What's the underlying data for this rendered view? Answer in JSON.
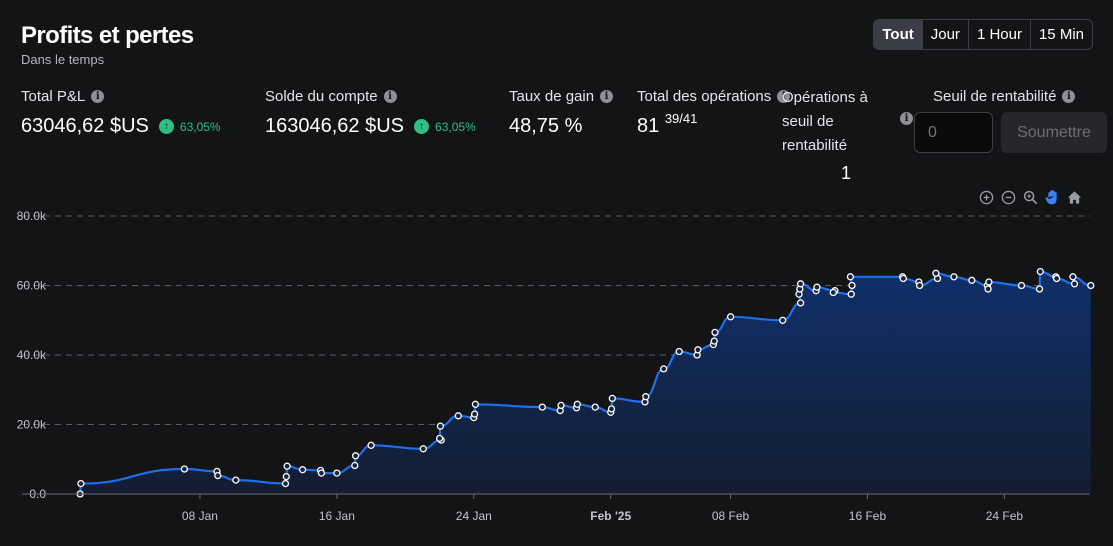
{
  "header": {
    "title": "Profits et pertes",
    "subtitle": "Dans le temps"
  },
  "range_buttons": [
    {
      "label": "Tout",
      "active": true
    },
    {
      "label": "Jour",
      "active": false
    },
    {
      "label": "1 Hour",
      "active": false
    },
    {
      "label": "15 Min",
      "active": false
    }
  ],
  "stats": {
    "total_pnl": {
      "label": "Total P&L",
      "value": "63046,62 $US",
      "badge": "63,05%"
    },
    "balance": {
      "label": "Solde du compte",
      "value": "163046,62 $US",
      "badge": "63,05%"
    },
    "win_rate": {
      "label": "Taux de gain",
      "value": "48,75 %"
    },
    "total_ops": {
      "label": "Total des opérations",
      "value": "81",
      "detail": "39/41"
    },
    "breakeven_ops": {
      "label": "Opérations à seuil de rentabilité",
      "value": "1"
    },
    "threshold": {
      "label": "Seuil de rentabilité",
      "placeholder": "0",
      "submit_label": "Soumettre"
    }
  },
  "toolbar": {
    "icons": [
      "zoom-in-icon",
      "zoom-out-icon",
      "magnifier-icon",
      "pan-hand-icon",
      "home-icon"
    ],
    "active_color": "#3b82f6",
    "icon_color": "#9a9da3"
  },
  "colors": {
    "line": "#1f6feb",
    "area_top": "#10306a",
    "area_bottom": "#131d32",
    "badge_green": "#2fbf84",
    "grid": "#5a5c61"
  },
  "chart_data": {
    "type": "area",
    "x_unit": "date",
    "year": 2025,
    "xlim": [
      "2024-12-31",
      "2025-03-01"
    ],
    "ylim": [
      0,
      80000
    ],
    "grid": true,
    "y_ticks": [
      {
        "value": 0,
        "label": "0.0"
      },
      {
        "value": 20000,
        "label": "20.0k"
      },
      {
        "value": 40000,
        "label": "40.0k"
      },
      {
        "value": 60000,
        "label": "60.0k"
      },
      {
        "value": 80000,
        "label": "80.0k"
      }
    ],
    "x_ticks": [
      {
        "date": "2025-01-08",
        "label": "08 Jan",
        "bold": false
      },
      {
        "date": "2025-01-16",
        "label": "16 Jan",
        "bold": false
      },
      {
        "date": "2025-01-24",
        "label": "24 Jan",
        "bold": false
      },
      {
        "date": "2025-02-01",
        "label": "Feb '25",
        "bold": true
      },
      {
        "date": "2025-02-08",
        "label": "08 Feb",
        "bold": false
      },
      {
        "date": "2025-02-16",
        "label": "16 Feb",
        "bold": false
      },
      {
        "date": "2025-02-24",
        "label": "24 Feb",
        "bold": false
      }
    ],
    "series": [
      {
        "points": [
          [
            "2025-01-01",
            0
          ],
          [
            "2025-01-01",
            3000
          ],
          [
            "2025-01-07",
            7200
          ],
          [
            "2025-01-09",
            6500
          ],
          [
            "2025-01-09",
            5300
          ],
          [
            "2025-01-10",
            4000
          ],
          [
            "2025-01-13",
            3000
          ],
          [
            "2025-01-13",
            5000
          ],
          [
            "2025-01-13",
            8000
          ],
          [
            "2025-01-14",
            7000
          ],
          [
            "2025-01-15",
            6800
          ],
          [
            "2025-01-15",
            6000
          ],
          [
            "2025-01-16",
            6000
          ],
          [
            "2025-01-17",
            8200
          ],
          [
            "2025-01-17",
            11000
          ],
          [
            "2025-01-18",
            14000
          ],
          [
            "2025-01-21",
            13000
          ],
          [
            "2025-01-22",
            15500
          ],
          [
            "2025-01-22",
            16000
          ],
          [
            "2025-01-22",
            19500
          ],
          [
            "2025-01-23",
            22500
          ],
          [
            "2025-01-24",
            22000
          ],
          [
            "2025-01-24",
            23000
          ],
          [
            "2025-01-24",
            25800
          ],
          [
            "2025-01-28",
            25000
          ],
          [
            "2025-01-29",
            24000
          ],
          [
            "2025-01-29",
            25500
          ],
          [
            "2025-01-30",
            24800
          ],
          [
            "2025-01-30",
            25800
          ],
          [
            "2025-01-31",
            25000
          ],
          [
            "2025-02-01",
            23500
          ],
          [
            "2025-02-01",
            24500
          ],
          [
            "2025-02-01",
            27500
          ],
          [
            "2025-02-03",
            26500
          ],
          [
            "2025-02-03",
            28000
          ],
          [
            "2025-02-04",
            36000
          ],
          [
            "2025-02-05",
            41000
          ],
          [
            "2025-02-06",
            40000
          ],
          [
            "2025-02-06",
            41500
          ],
          [
            "2025-02-07",
            43000
          ],
          [
            "2025-02-07",
            44000
          ],
          [
            "2025-02-07",
            46500
          ],
          [
            "2025-02-08",
            51000
          ],
          [
            "2025-02-11",
            50000
          ],
          [
            "2025-02-12",
            55000
          ],
          [
            "2025-02-12",
            57500
          ],
          [
            "2025-02-12",
            59000
          ],
          [
            "2025-02-12",
            60500
          ],
          [
            "2025-02-13",
            58500
          ],
          [
            "2025-02-13",
            59500
          ],
          [
            "2025-02-14",
            58500
          ],
          [
            "2025-02-14",
            58000
          ],
          [
            "2025-02-15",
            57500
          ],
          [
            "2025-02-15",
            60000
          ],
          [
            "2025-02-15",
            62500
          ],
          [
            "2025-02-18",
            62500
          ],
          [
            "2025-02-18",
            62000
          ],
          [
            "2025-02-19",
            61000
          ],
          [
            "2025-02-19",
            60000
          ],
          [
            "2025-02-20",
            62000
          ],
          [
            "2025-02-20",
            63500
          ],
          [
            "2025-02-21",
            62500
          ],
          [
            "2025-02-22",
            61500
          ],
          [
            "2025-02-23",
            60000
          ],
          [
            "2025-02-23",
            59000
          ],
          [
            "2025-02-23",
            61000
          ],
          [
            "2025-02-25",
            60000
          ],
          [
            "2025-02-26",
            59000
          ],
          [
            "2025-02-26",
            64000
          ],
          [
            "2025-02-27",
            62500
          ],
          [
            "2025-02-27",
            62000
          ],
          [
            "2025-02-28",
            60500
          ],
          [
            "2025-02-28",
            62500
          ],
          [
            "2025-03-01",
            60000
          ]
        ]
      }
    ]
  }
}
